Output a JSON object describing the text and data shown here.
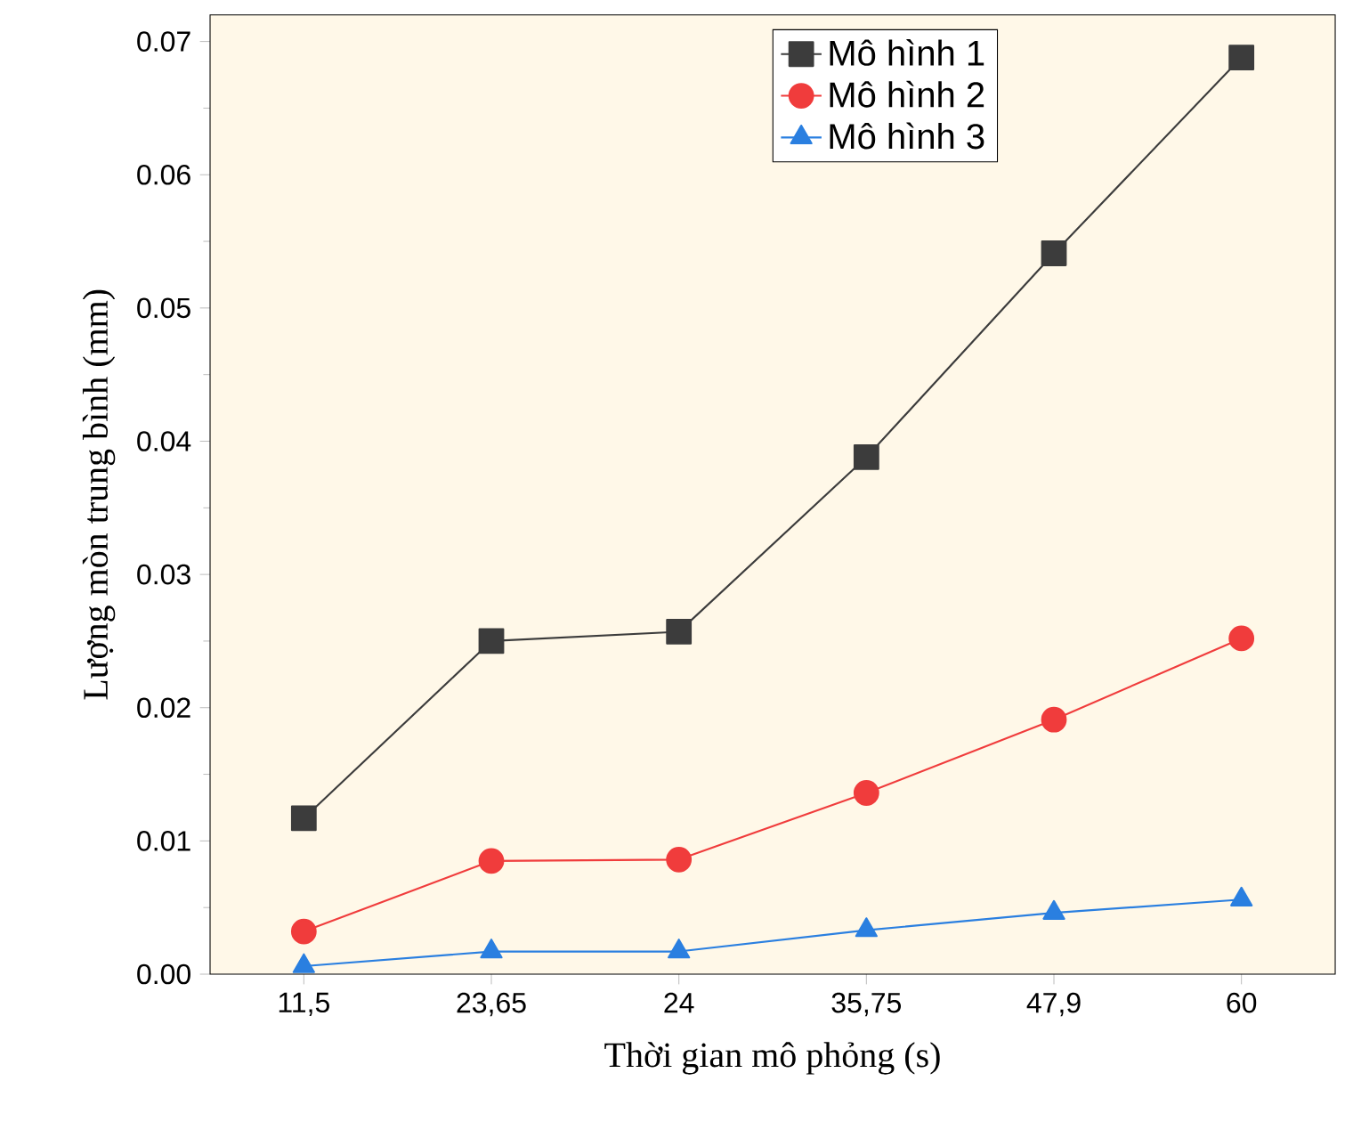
{
  "chart_data": {
    "type": "line",
    "xlabel": "Thời gian mô phỏng (s)",
    "ylabel": "Lượng mòn trung bình (mm)",
    "categories": [
      "11,5",
      "23,65",
      "24",
      "35,75",
      "47,9",
      "60"
    ],
    "ylim": [
      0,
      0.072
    ],
    "yticks": [
      {
        "value": 0,
        "label": "0.00"
      },
      {
        "value": 0.01,
        "label": "0.01"
      },
      {
        "value": 0.02,
        "label": "0.02"
      },
      {
        "value": 0.03,
        "label": "0.03"
      },
      {
        "value": 0.04,
        "label": "0.04"
      },
      {
        "value": 0.05,
        "label": "0.05"
      },
      {
        "value": 0.06,
        "label": "0.06"
      },
      {
        "value": 0.07,
        "label": "0.07"
      }
    ],
    "grid": false,
    "legend": "top",
    "line_style": "solid",
    "series": [
      {
        "name": "Mô hình 1",
        "color": "#3c3c3c",
        "marker": "square",
        "values": [
          0.0117,
          0.025,
          0.0257,
          0.0388,
          0.0541,
          0.0688
        ]
      },
      {
        "name": "Mô hình 2",
        "color": "#f03c3c",
        "marker": "circle",
        "values": [
          0.0032,
          0.0085,
          0.0086,
          0.0136,
          0.0191,
          0.0252
        ]
      },
      {
        "name": "Mô hình 3",
        "color": "#2a7fe0",
        "marker": "triangle",
        "values": [
          0.0006,
          0.0017,
          0.0017,
          0.0033,
          0.0046,
          0.0056
        ]
      }
    ]
  }
}
